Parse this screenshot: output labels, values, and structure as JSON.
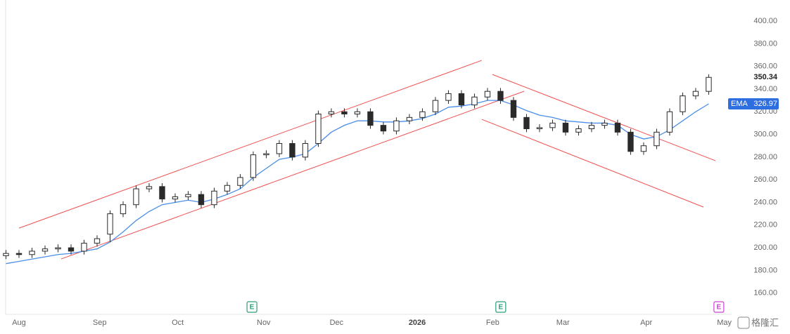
{
  "chart_data": {
    "type": "candlestick",
    "x": [
      -5,
      0,
      5,
      10,
      15,
      20,
      25,
      30,
      35,
      40,
      45,
      50,
      55,
      60,
      65,
      70,
      75,
      80,
      85,
      90,
      95,
      100,
      105,
      110,
      115,
      120,
      125,
      130,
      135,
      140,
      145,
      150,
      155,
      160,
      165,
      170,
      175,
      180,
      185,
      190,
      195,
      200,
      205,
      210,
      215,
      220,
      225,
      230,
      235,
      240,
      245,
      250,
      255,
      260,
      265
    ],
    "open": [
      193,
      195,
      194,
      197,
      199,
      200,
      197,
      204,
      212,
      230,
      238,
      252,
      254,
      243,
      245,
      247,
      238,
      250,
      255,
      262,
      282,
      283,
      292,
      280,
      292,
      318,
      320,
      318,
      320,
      308,
      303,
      312,
      315,
      320,
      330,
      336,
      326,
      333,
      338,
      330,
      315,
      305,
      306,
      310,
      302,
      305,
      308,
      310,
      302,
      285,
      290,
      302,
      320,
      334,
      338
    ],
    "high": [
      198,
      198,
      200,
      202,
      203,
      203,
      207,
      211,
      233,
      241,
      255,
      257,
      257,
      248,
      250,
      250,
      253,
      258,
      265,
      285,
      286,
      295,
      295,
      295,
      321,
      323,
      323,
      323,
      323,
      311,
      315,
      318,
      323,
      333,
      339,
      339,
      336,
      341,
      341,
      333,
      318,
      309,
      313,
      313,
      308,
      311,
      313,
      313,
      305,
      293,
      305,
      323,
      337,
      341,
      353
    ],
    "low": [
      190,
      191,
      191,
      194,
      196,
      194,
      194,
      201,
      205,
      227,
      235,
      249,
      240,
      240,
      242,
      235,
      235,
      247,
      252,
      259,
      279,
      280,
      277,
      277,
      289,
      315,
      315,
      315,
      305,
      300,
      300,
      309,
      312,
      317,
      327,
      323,
      323,
      330,
      327,
      312,
      302,
      302,
      303,
      299,
      299,
      302,
      305,
      299,
      282,
      282,
      287,
      299,
      317,
      331,
      335
    ],
    "close": [
      195,
      194,
      197,
      199,
      200,
      197,
      204,
      208,
      230,
      238,
      252,
      254,
      243,
      245,
      247,
      238,
      250,
      255,
      262,
      282,
      283,
      292,
      280,
      292,
      318,
      320,
      318,
      320,
      308,
      303,
      312,
      315,
      320,
      330,
      336,
      326,
      333,
      338,
      330,
      315,
      305,
      306,
      310,
      302,
      305,
      308,
      310,
      302,
      285,
      290,
      302,
      320,
      334,
      338,
      350.34
    ],
    "up_color": "#ffffff",
    "down_color": "#2a2a2a",
    "ema": {
      "name": "EMA",
      "color": "#4a8ee8",
      "values": [
        186,
        188,
        190,
        192,
        194,
        195,
        197,
        199,
        205,
        214,
        224,
        232,
        238,
        240,
        242,
        240,
        243,
        247,
        252,
        262,
        270,
        278,
        280,
        283,
        292,
        302,
        308,
        312,
        312,
        311,
        311,
        312,
        314,
        318,
        324,
        325,
        327,
        330,
        330,
        326,
        321,
        317,
        315,
        312,
        311,
        310,
        310,
        308,
        300,
        296,
        298,
        304,
        312,
        320,
        326.97
      ]
    },
    "trendlines": [
      {
        "x": [
          0,
          177.8
        ],
        "y": [
          217.3,
          365.3
        ],
        "color": "#f05050"
      },
      {
        "x": [
          16.2,
          194.1
        ],
        "y": [
          190.1,
          338.1
        ],
        "color": "#f05050"
      },
      {
        "x": [
          181.9,
          267.6
        ],
        "y": [
          352.9,
          276.8
        ],
        "color": "#f05050"
      },
      {
        "x": [
          177.8,
          263.0
        ],
        "y": [
          313.3,
          235.9
        ],
        "color": "#f05050"
      }
    ],
    "events": [
      {
        "label": "E",
        "x": 89.5,
        "color": "#2a9d7a"
      },
      {
        "label": "E",
        "x": 185.1,
        "color": "#2a9d7a"
      },
      {
        "label": "E",
        "x": 268.9,
        "color": "#d040d8"
      }
    ],
    "xlim": [
      -7.3,
      273.8
    ],
    "ylim": [
      140,
      418.6
    ],
    "xticks": [
      {
        "value": 0,
        "label": "Aug"
      },
      {
        "value": 31,
        "label": "Sep"
      },
      {
        "value": 61,
        "label": "Oct"
      },
      {
        "value": 94,
        "label": "Nov"
      },
      {
        "value": 122,
        "label": "Dec"
      },
      {
        "value": 153,
        "label": "2026"
      },
      {
        "value": 182,
        "label": "Feb"
      },
      {
        "value": 209,
        "label": "Mar"
      },
      {
        "value": 241,
        "label": "Apr"
      },
      {
        "value": 271,
        "label": "May"
      }
    ],
    "yticks": [
      {
        "value": 160,
        "label": "160.00"
      },
      {
        "value": 180,
        "label": "180.00"
      },
      {
        "value": 200,
        "label": "200.00"
      },
      {
        "value": 220,
        "label": "220.00"
      },
      {
        "value": 240,
        "label": "240.00"
      },
      {
        "value": 260,
        "label": "260.00"
      },
      {
        "value": 280,
        "label": "280.00"
      },
      {
        "value": 300,
        "label": "300.00"
      },
      {
        "value": 320,
        "label": "320.00"
      },
      {
        "value": 340,
        "label": "340.00"
      },
      {
        "value": 360,
        "label": "360.00"
      },
      {
        "value": 380,
        "label": "380.00"
      },
      {
        "value": 400,
        "label": "400.00"
      }
    ]
  },
  "watermark": "格隆汇"
}
